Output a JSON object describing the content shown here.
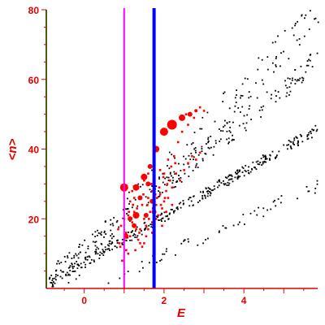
{
  "chart_data": {
    "type": "scatter",
    "xlabel": "E",
    "ylabel": "<n>",
    "xlim": [
      -0.95,
      5.85
    ],
    "ylim": [
      0,
      80
    ],
    "xticks": [
      0,
      2,
      4
    ],
    "yticks": [
      20,
      40,
      60,
      80
    ],
    "colors": {
      "axis": "#e00000",
      "yaxis_line": "#4a5a18",
      "black_points": "#000000",
      "red_points": "#ff0000",
      "magenta_line": "#ff00ff",
      "blue_line": "#0000ff"
    },
    "vertical_lines": [
      {
        "name": "",
        "x": 1.0,
        "color": "#ff00ff"
      },
      {
        "name": "",
        "x": 1.75,
        "color": "#0000ff"
      }
    ],
    "series": [
      {
        "kind": "black-band",
        "description_hidden": true,
        "bands": [
          {
            "x0": -0.9,
            "x1": 5.85,
            "y0": 2,
            "y1": 46,
            "count": 330,
            "spread": 1.5
          },
          {
            "x0": -0.9,
            "x1": 5.85,
            "y0": 3,
            "y1": 66,
            "count": 230,
            "spread": 3.5
          },
          {
            "x0": -0.5,
            "x1": 5.85,
            "y0": 4,
            "y1": 80,
            "count": 140,
            "spread": 5
          },
          {
            "x0": 0.5,
            "x1": 5.85,
            "y0": 2,
            "y1": 30,
            "count": 60,
            "spread": 2
          }
        ]
      },
      {
        "kind": "red-small",
        "points": [
          [
            0.95,
            8
          ],
          [
            0.9,
            12
          ],
          [
            1.0,
            14
          ],
          [
            1.05,
            16
          ],
          [
            0.92,
            18
          ],
          [
            1.1,
            10
          ],
          [
            1.2,
            19
          ],
          [
            1.25,
            22
          ],
          [
            1.3,
            17
          ],
          [
            1.35,
            21
          ],
          [
            1.4,
            13
          ],
          [
            1.45,
            24
          ],
          [
            1.5,
            20
          ],
          [
            1.55,
            18
          ],
          [
            1.6,
            26
          ],
          [
            1.65,
            22
          ],
          [
            1.7,
            19
          ],
          [
            1.8,
            24
          ],
          [
            1.85,
            21
          ],
          [
            1.9,
            27
          ],
          [
            1.95,
            23
          ],
          [
            2.0,
            25
          ],
          [
            2.05,
            28
          ],
          [
            2.1,
            26
          ],
          [
            2.15,
            31
          ],
          [
            2.2,
            29
          ],
          [
            2.3,
            33
          ],
          [
            2.4,
            31
          ],
          [
            2.5,
            34
          ],
          [
            2.6,
            36
          ],
          [
            2.7,
            38
          ],
          [
            2.8,
            37
          ],
          [
            2.9,
            39
          ],
          [
            1.15,
            25
          ],
          [
            1.2,
            28
          ],
          [
            1.3,
            29
          ],
          [
            1.5,
            31
          ],
          [
            1.6,
            33
          ],
          [
            1.35,
            14
          ],
          [
            1.45,
            12
          ],
          [
            1.55,
            15
          ],
          [
            1.25,
            26
          ],
          [
            1.4,
            17
          ],
          [
            1.7,
            28
          ],
          [
            1.75,
            31
          ],
          [
            1.9,
            34
          ],
          [
            2.0,
            33
          ],
          [
            2.1,
            37
          ],
          [
            2.25,
            38
          ],
          [
            2.35,
            42
          ],
          [
            2.45,
            45
          ],
          [
            2.6,
            47
          ],
          [
            2.75,
            49
          ],
          [
            2.9,
            52
          ],
          [
            3.0,
            51
          ],
          [
            2.55,
            50
          ],
          [
            1.05,
            11
          ],
          [
            1.15,
            15
          ],
          [
            1.0,
            20
          ],
          [
            1.1,
            21
          ],
          [
            1.6,
            17
          ],
          [
            1.5,
            13
          ],
          [
            1.7,
            16
          ],
          [
            1.8,
            20
          ],
          [
            1.95,
            18
          ],
          [
            2.05,
            22
          ],
          [
            2.2,
            24
          ],
          [
            0.85,
            17
          ],
          [
            0.88,
            13
          ],
          [
            1.28,
            11
          ],
          [
            1.38,
            16
          ],
          [
            1.48,
            27
          ],
          [
            1.58,
            24
          ],
          [
            1.68,
            30
          ],
          [
            1.78,
            27
          ],
          [
            1.88,
            29
          ],
          [
            1.98,
            32
          ],
          [
            2.08,
            30
          ],
          [
            2.18,
            35
          ],
          [
            2.28,
            36
          ],
          [
            1.12,
            22
          ],
          [
            1.22,
            24
          ],
          [
            1.32,
            23
          ],
          [
            1.42,
            26
          ],
          [
            1.52,
            21
          ],
          [
            1.62,
            20
          ],
          [
            1.72,
            23
          ],
          [
            1.82,
            26
          ],
          [
            1.92,
            24
          ],
          [
            2.02,
            26
          ]
        ]
      },
      {
        "kind": "red-large",
        "points": [
          [
            1.0,
            29,
            5
          ],
          [
            1.3,
            29,
            4
          ],
          [
            1.5,
            32,
            4
          ],
          [
            1.65,
            35,
            3
          ],
          [
            1.8,
            40,
            4
          ],
          [
            1.3,
            21,
            4
          ],
          [
            1.15,
            20,
            3
          ],
          [
            1.4,
            26,
            3
          ],
          [
            1.6,
            30,
            3
          ],
          [
            1.7,
            25,
            3
          ],
          [
            2.0,
            45,
            5
          ],
          [
            2.2,
            47,
            6
          ],
          [
            2.45,
            49,
            4
          ],
          [
            2.65,
            50,
            3
          ],
          [
            2.8,
            51,
            2
          ],
          [
            1.75,
            22,
            3
          ],
          [
            1.55,
            21,
            3
          ],
          [
            1.05,
            15,
            3
          ],
          [
            1.25,
            18,
            3
          ]
        ]
      }
    ]
  }
}
